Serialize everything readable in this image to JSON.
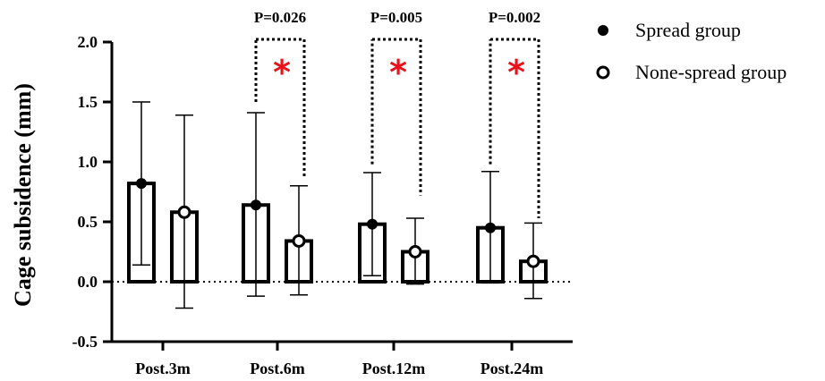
{
  "chart_data": {
    "type": "bar",
    "ylabel": "Cage subsidence (mm)",
    "xlabel": "",
    "ylim": [
      -0.5,
      2.0
    ],
    "yticks": [
      "-0.5",
      "0.0",
      "0.5",
      "1.0",
      "1.5",
      "2.0"
    ],
    "ytick_values": [
      -0.5,
      0.0,
      0.5,
      1.0,
      1.5,
      2.0
    ],
    "categories": [
      "Post.3m",
      "Post.6m",
      "Post.12m",
      "Post.24m"
    ],
    "series": [
      {
        "name": "Spread group",
        "marker": "filled-circle",
        "values": [
          0.82,
          0.64,
          0.48,
          0.45
        ],
        "error_low": [
          0.14,
          -0.12,
          0.05,
          -0.01
        ],
        "error_high": [
          1.5,
          1.41,
          0.91,
          0.92
        ]
      },
      {
        "name": "None-spread group",
        "marker": "open-circle",
        "values": [
          0.58,
          0.34,
          0.25,
          0.17
        ],
        "error_low": [
          -0.22,
          -0.11,
          -0.02,
          -0.14
        ],
        "error_high": [
          1.39,
          0.8,
          0.53,
          0.49
        ]
      }
    ],
    "significance": [
      {
        "category_index": 1,
        "p_label": "P=0.026",
        "marker": "*",
        "left_y": 1.5,
        "right_y": 0.87
      },
      {
        "category_index": 2,
        "p_label": "P=0.005",
        "marker": "*",
        "left_y": 0.98,
        "right_y": 0.72
      },
      {
        "category_index": 3,
        "p_label": "P=0.002",
        "marker": "*",
        "left_y": 0.98,
        "right_y": 0.53
      }
    ],
    "zero_line": "dotted",
    "legend_position": "right",
    "colors": {
      "axis": "#000000",
      "star": "#e8121c",
      "bar_fill": "#ffffff"
    }
  }
}
